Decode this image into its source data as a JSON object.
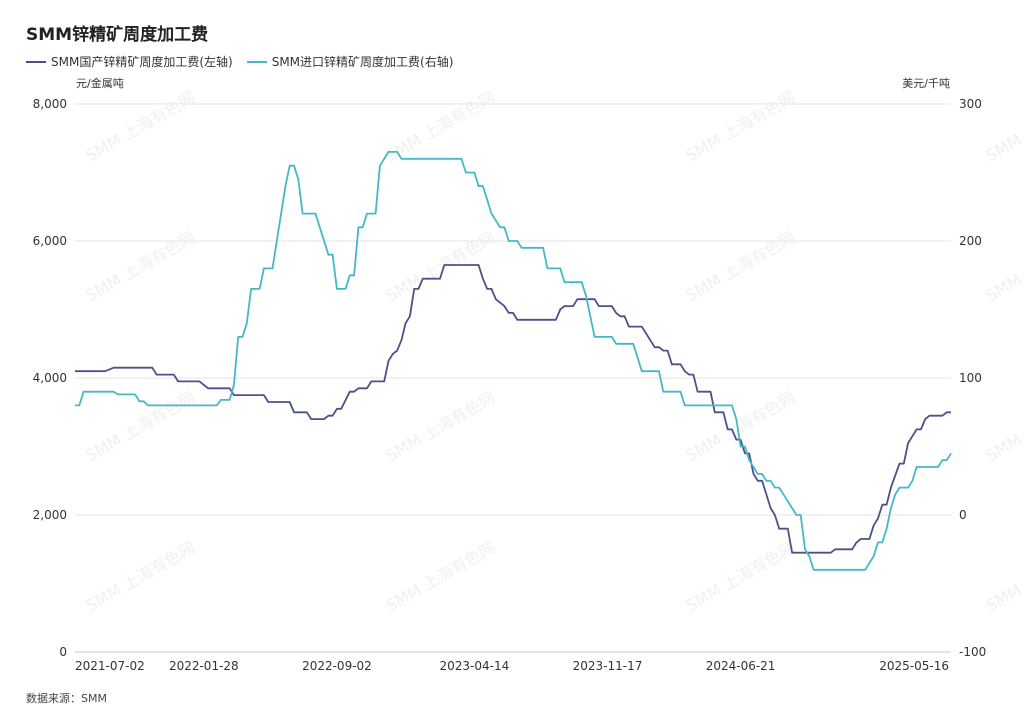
{
  "title": "SMM锌精矿周度加工费",
  "units": {
    "left": "元/金属吨",
    "right": "美元/千吨"
  },
  "source": "数据来源：SMM",
  "watermark": "SMM 上海有色网",
  "colors": {
    "domestic": "#4a5289",
    "imported": "#45b8c8",
    "grid": "#e6e6e6"
  },
  "chart_data": {
    "type": "line",
    "x_tick_labels": [
      "2021-07-02",
      "2022-01-28",
      "2022-09-02",
      "2023-04-14",
      "2023-11-17",
      "2024-06-21",
      "2025-05-16"
    ],
    "x_range": [
      "2021-07-02",
      "2025-05-30"
    ],
    "y_left": {
      "ticks": [
        "0",
        "2,000",
        "4,000",
        "6,000",
        "8,000"
      ],
      "range": [
        0,
        8000
      ]
    },
    "y_right": {
      "ticks": [
        "-100",
        "0",
        "100",
        "200",
        "300"
      ],
      "range": [
        -100,
        300
      ]
    },
    "grid": "horizontal",
    "legend_position": "top-left",
    "series": [
      {
        "name": "SMM国产锌精矿周度加工费(左轴)",
        "axis": "left",
        "points": [
          [
            "2021-07-02",
            4100
          ],
          [
            "2021-08-20",
            4100
          ],
          [
            "2021-09-03",
            4150
          ],
          [
            "2021-11-05",
            4150
          ],
          [
            "2021-11-12",
            4050
          ],
          [
            "2021-12-10",
            4050
          ],
          [
            "2021-12-17",
            3950
          ],
          [
            "2022-01-21",
            3950
          ],
          [
            "2022-02-04",
            3850
          ],
          [
            "2022-03-11",
            3850
          ],
          [
            "2022-03-18",
            3750
          ],
          [
            "2022-05-06",
            3750
          ],
          [
            "2022-05-13",
            3650
          ],
          [
            "2022-06-17",
            3650
          ],
          [
            "2022-06-24",
            3500
          ],
          [
            "2022-07-15",
            3500
          ],
          [
            "2022-07-22",
            3400
          ],
          [
            "2022-08-12",
            3400
          ],
          [
            "2022-08-19",
            3450
          ],
          [
            "2022-08-26",
            3450
          ],
          [
            "2022-09-02",
            3550
          ],
          [
            "2022-09-09",
            3550
          ],
          [
            "2022-09-23",
            3800
          ],
          [
            "2022-09-30",
            3800
          ],
          [
            "2022-10-07",
            3850
          ],
          [
            "2022-10-21",
            3850
          ],
          [
            "2022-10-28",
            3950
          ],
          [
            "2022-11-18",
            3950
          ],
          [
            "2022-11-25",
            4250
          ],
          [
            "2022-12-02",
            4350
          ],
          [
            "2022-12-09",
            4400
          ],
          [
            "2022-12-16",
            4550
          ],
          [
            "2022-12-23",
            4800
          ],
          [
            "2022-12-30",
            4900
          ],
          [
            "2023-01-06",
            5300
          ],
          [
            "2023-01-13",
            5300
          ],
          [
            "2023-01-20",
            5450
          ],
          [
            "2023-02-17",
            5450
          ],
          [
            "2023-02-24",
            5650
          ],
          [
            "2023-04-21",
            5650
          ],
          [
            "2023-04-28",
            5450
          ],
          [
            "2023-05-05",
            5300
          ],
          [
            "2023-05-12",
            5300
          ],
          [
            "2023-05-19",
            5150
          ],
          [
            "2023-06-02",
            5050
          ],
          [
            "2023-06-09",
            4950
          ],
          [
            "2023-06-16",
            4950
          ],
          [
            "2023-06-23",
            4850
          ],
          [
            "2023-08-25",
            4850
          ],
          [
            "2023-09-01",
            5000
          ],
          [
            "2023-09-08",
            5050
          ],
          [
            "2023-09-22",
            5050
          ],
          [
            "2023-09-29",
            5150
          ],
          [
            "2023-10-27",
            5150
          ],
          [
            "2023-11-03",
            5050
          ],
          [
            "2023-11-24",
            5050
          ],
          [
            "2023-12-01",
            4950
          ],
          [
            "2023-12-08",
            4900
          ],
          [
            "2023-12-15",
            4900
          ],
          [
            "2023-12-22",
            4750
          ],
          [
            "2024-01-12",
            4750
          ],
          [
            "2024-01-19",
            4650
          ],
          [
            "2024-02-02",
            4450
          ],
          [
            "2024-02-09",
            4450
          ],
          [
            "2024-02-16",
            4400
          ],
          [
            "2024-02-23",
            4400
          ],
          [
            "2024-03-01",
            4200
          ],
          [
            "2024-03-15",
            4200
          ],
          [
            "2024-03-22",
            4100
          ],
          [
            "2024-03-29",
            4050
          ],
          [
            "2024-04-05",
            4050
          ],
          [
            "2024-04-12",
            3800
          ],
          [
            "2024-05-03",
            3800
          ],
          [
            "2024-05-10",
            3500
          ],
          [
            "2024-05-24",
            3500
          ],
          [
            "2024-05-31",
            3250
          ],
          [
            "2024-06-07",
            3250
          ],
          [
            "2024-06-14",
            3100
          ],
          [
            "2024-06-21",
            3100
          ],
          [
            "2024-06-28",
            2900
          ],
          [
            "2024-07-05",
            2900
          ],
          [
            "2024-07-12",
            2600
          ],
          [
            "2024-07-19",
            2500
          ],
          [
            "2024-07-26",
            2500
          ],
          [
            "2024-08-02",
            2300
          ],
          [
            "2024-08-09",
            2100
          ],
          [
            "2024-08-16",
            2000
          ],
          [
            "2024-08-23",
            1800
          ],
          [
            "2024-09-06",
            1800
          ],
          [
            "2024-09-13",
            1450
          ],
          [
            "2024-11-15",
            1450
          ],
          [
            "2024-11-22",
            1500
          ],
          [
            "2024-12-20",
            1500
          ],
          [
            "2024-12-27",
            1600
          ],
          [
            "2025-01-03",
            1650
          ],
          [
            "2025-01-17",
            1650
          ],
          [
            "2025-01-24",
            1850
          ],
          [
            "2025-01-31",
            1950
          ],
          [
            "2025-02-07",
            2150
          ],
          [
            "2025-02-14",
            2150
          ],
          [
            "2025-02-21",
            2400
          ],
          [
            "2025-03-07",
            2750
          ],
          [
            "2025-03-14",
            2750
          ],
          [
            "2025-03-21",
            3050
          ],
          [
            "2025-03-28",
            3150
          ],
          [
            "2025-04-04",
            3250
          ],
          [
            "2025-04-11",
            3250
          ],
          [
            "2025-04-18",
            3400
          ],
          [
            "2025-04-25",
            3450
          ],
          [
            "2025-05-16",
            3450
          ],
          [
            "2025-05-23",
            3500
          ],
          [
            "2025-05-30",
            3500
          ]
        ]
      },
      {
        "name": "SMM进口锌精矿周度加工费(右轴)",
        "axis": "right",
        "points": [
          [
            "2021-07-02",
            80
          ],
          [
            "2021-07-09",
            80
          ],
          [
            "2021-07-16",
            90
          ],
          [
            "2021-09-03",
            90
          ],
          [
            "2021-09-10",
            88
          ],
          [
            "2021-10-08",
            88
          ],
          [
            "2021-10-15",
            83
          ],
          [
            "2021-10-22",
            83
          ],
          [
            "2021-10-29",
            80
          ],
          [
            "2022-02-18",
            80
          ],
          [
            "2022-02-25",
            84
          ],
          [
            "2022-03-11",
            84
          ],
          [
            "2022-03-18",
            95
          ],
          [
            "2022-03-25",
            130
          ],
          [
            "2022-04-01",
            130
          ],
          [
            "2022-04-08",
            140
          ],
          [
            "2022-04-15",
            165
          ],
          [
            "2022-04-29",
            165
          ],
          [
            "2022-05-06",
            180
          ],
          [
            "2022-05-20",
            180
          ],
          [
            "2022-05-27",
            200
          ],
          [
            "2022-06-03",
            220
          ],
          [
            "2022-06-10",
            240
          ],
          [
            "2022-06-17",
            255
          ],
          [
            "2022-06-24",
            255
          ],
          [
            "2022-07-01",
            245
          ],
          [
            "2022-07-08",
            220
          ],
          [
            "2022-07-29",
            220
          ],
          [
            "2022-08-05",
            210
          ],
          [
            "2022-08-19",
            190
          ],
          [
            "2022-08-26",
            190
          ],
          [
            "2022-09-02",
            165
          ],
          [
            "2022-09-16",
            165
          ],
          [
            "2022-09-23",
            175
          ],
          [
            "2022-09-30",
            175
          ],
          [
            "2022-10-07",
            210
          ],
          [
            "2022-10-14",
            210
          ],
          [
            "2022-10-21",
            220
          ],
          [
            "2022-11-04",
            220
          ],
          [
            "2022-11-11",
            255
          ],
          [
            "2022-11-18",
            260
          ],
          [
            "2022-11-25",
            265
          ],
          [
            "2022-12-09",
            265
          ],
          [
            "2022-12-16",
            260
          ],
          [
            "2023-03-24",
            260
          ],
          [
            "2023-03-31",
            250
          ],
          [
            "2023-04-14",
            250
          ],
          [
            "2023-04-21",
            240
          ],
          [
            "2023-04-28",
            240
          ],
          [
            "2023-05-05",
            230
          ],
          [
            "2023-05-12",
            220
          ],
          [
            "2023-05-26",
            210
          ],
          [
            "2023-06-02",
            210
          ],
          [
            "2023-06-09",
            200
          ],
          [
            "2023-06-23",
            200
          ],
          [
            "2023-06-30",
            195
          ],
          [
            "2023-08-04",
            195
          ],
          [
            "2023-08-11",
            180
          ],
          [
            "2023-09-01",
            180
          ],
          [
            "2023-09-08",
            170
          ],
          [
            "2023-10-06",
            170
          ],
          [
            "2023-10-13",
            160
          ],
          [
            "2023-10-20",
            145
          ],
          [
            "2023-10-27",
            130
          ],
          [
            "2023-11-24",
            130
          ],
          [
            "2023-12-01",
            125
          ],
          [
            "2023-12-29",
            125
          ],
          [
            "2024-01-05",
            115
          ],
          [
            "2024-01-12",
            105
          ],
          [
            "2024-02-09",
            105
          ],
          [
            "2024-02-16",
            90
          ],
          [
            "2024-03-15",
            90
          ],
          [
            "2024-03-22",
            80
          ],
          [
            "2024-06-07",
            80
          ],
          [
            "2024-06-14",
            70
          ],
          [
            "2024-06-21",
            50
          ],
          [
            "2024-06-28",
            50
          ],
          [
            "2024-07-05",
            40
          ],
          [
            "2024-07-12",
            35
          ],
          [
            "2024-07-19",
            30
          ],
          [
            "2024-07-26",
            30
          ],
          [
            "2024-08-02",
            25
          ],
          [
            "2024-08-09",
            25
          ],
          [
            "2024-08-16",
            20
          ],
          [
            "2024-08-23",
            20
          ],
          [
            "2024-08-30",
            15
          ],
          [
            "2024-09-06",
            10
          ],
          [
            "2024-09-13",
            5
          ],
          [
            "2024-09-20",
            0
          ],
          [
            "2024-09-27",
            0
          ],
          [
            "2024-10-04",
            -25
          ],
          [
            "2024-10-11",
            -30
          ],
          [
            "2024-10-18",
            -40
          ],
          [
            "2025-01-10",
            -40
          ],
          [
            "2025-01-17",
            -35
          ],
          [
            "2025-01-24",
            -30
          ],
          [
            "2025-01-31",
            -20
          ],
          [
            "2025-02-07",
            -20
          ],
          [
            "2025-02-14",
            -10
          ],
          [
            "2025-02-21",
            5
          ],
          [
            "2025-02-28",
            15
          ],
          [
            "2025-03-07",
            20
          ],
          [
            "2025-03-21",
            20
          ],
          [
            "2025-03-28",
            25
          ],
          [
            "2025-04-04",
            35
          ],
          [
            "2025-04-11",
            35
          ],
          [
            "2025-05-09",
            35
          ],
          [
            "2025-05-16",
            40
          ],
          [
            "2025-05-23",
            40
          ],
          [
            "2025-05-30",
            45
          ]
        ]
      }
    ]
  }
}
